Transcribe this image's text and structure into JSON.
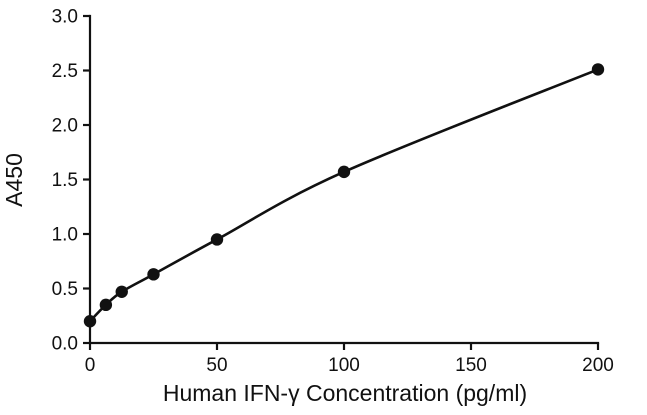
{
  "chart_data": {
    "type": "line",
    "title": "",
    "xlabel": "Human IFN-γ Concentration (pg/ml)",
    "ylabel": "A450",
    "x": [
      0,
      6.25,
      12.5,
      25,
      50,
      100,
      200
    ],
    "y": [
      0.2,
      0.35,
      0.47,
      0.63,
      0.95,
      1.57,
      2.51
    ],
    "xlim": [
      0,
      200
    ],
    "ylim": [
      0,
      3
    ],
    "xticks": [
      0,
      50,
      100,
      150,
      200
    ],
    "xtick_labels": [
      "0",
      "50",
      "100",
      "150",
      "200"
    ],
    "yticks": [
      0,
      0.5,
      1,
      1.5,
      2,
      2.5,
      3
    ],
    "ytick_labels": [
      "0.0",
      "0.5",
      "1.0",
      "1.5",
      "2.0",
      "2.5",
      "3.0"
    ],
    "grid": false,
    "legend": "none",
    "marker": "filled-circle",
    "line_color": "#111111",
    "marker_color": "#111111",
    "axis_color": "#111111",
    "background": "#ffffff"
  }
}
